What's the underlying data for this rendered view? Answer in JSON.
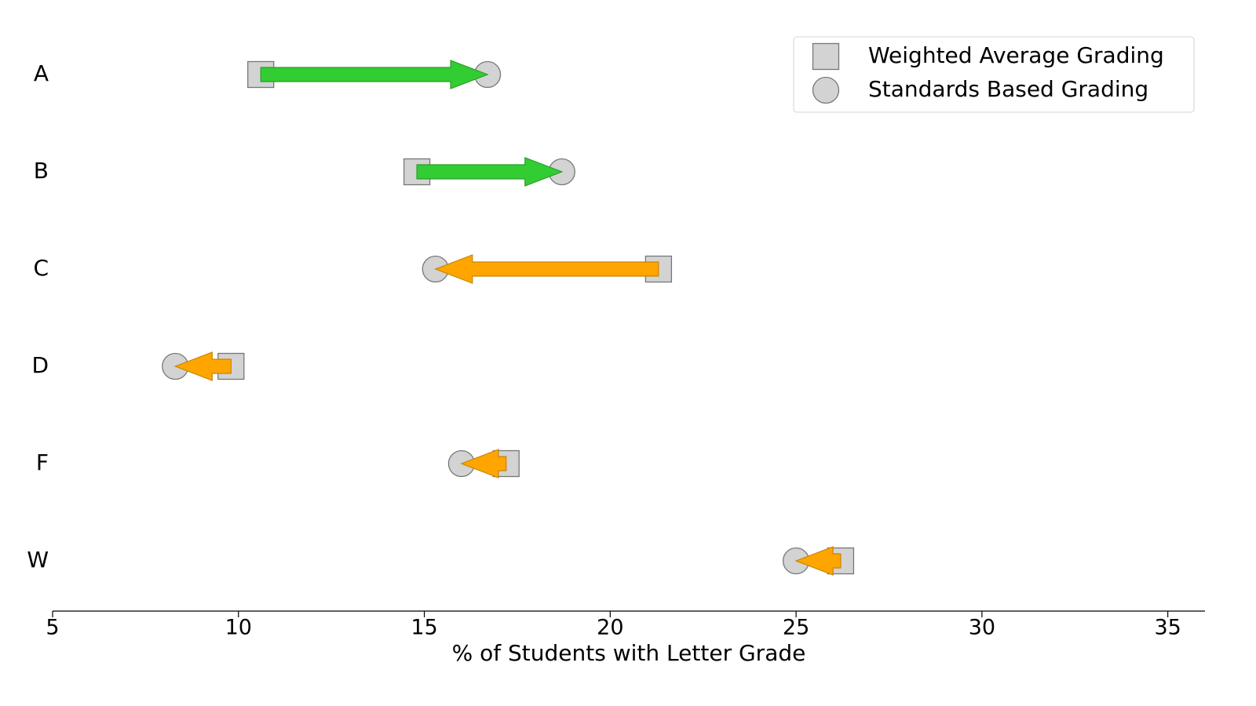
{
  "chart_data": {
    "type": "arrow",
    "categories": [
      "A",
      "B",
      "C",
      "D",
      "F",
      "W"
    ],
    "series": [
      {
        "name": "Weighted Average Grading",
        "color": "#d3d3d3",
        "marker": "square",
        "values": [
          10.6,
          14.8,
          21.3,
          9.8,
          17.2,
          26.2
        ]
      },
      {
        "name": "Standards Based Grading",
        "color": "#d3d3d3",
        "marker": "circle",
        "values": [
          16.7,
          18.7,
          15.3,
          8.3,
          16.0,
          25.0
        ]
      }
    ],
    "increase_color": "#32cd32",
    "decrease_color": "#ffa500",
    "xlabel": "% of Students with Letter Grade",
    "xlim": [
      5,
      36
    ],
    "xticks": [
      5,
      10,
      15,
      20,
      25,
      30,
      35
    ],
    "legend": "upper right"
  }
}
